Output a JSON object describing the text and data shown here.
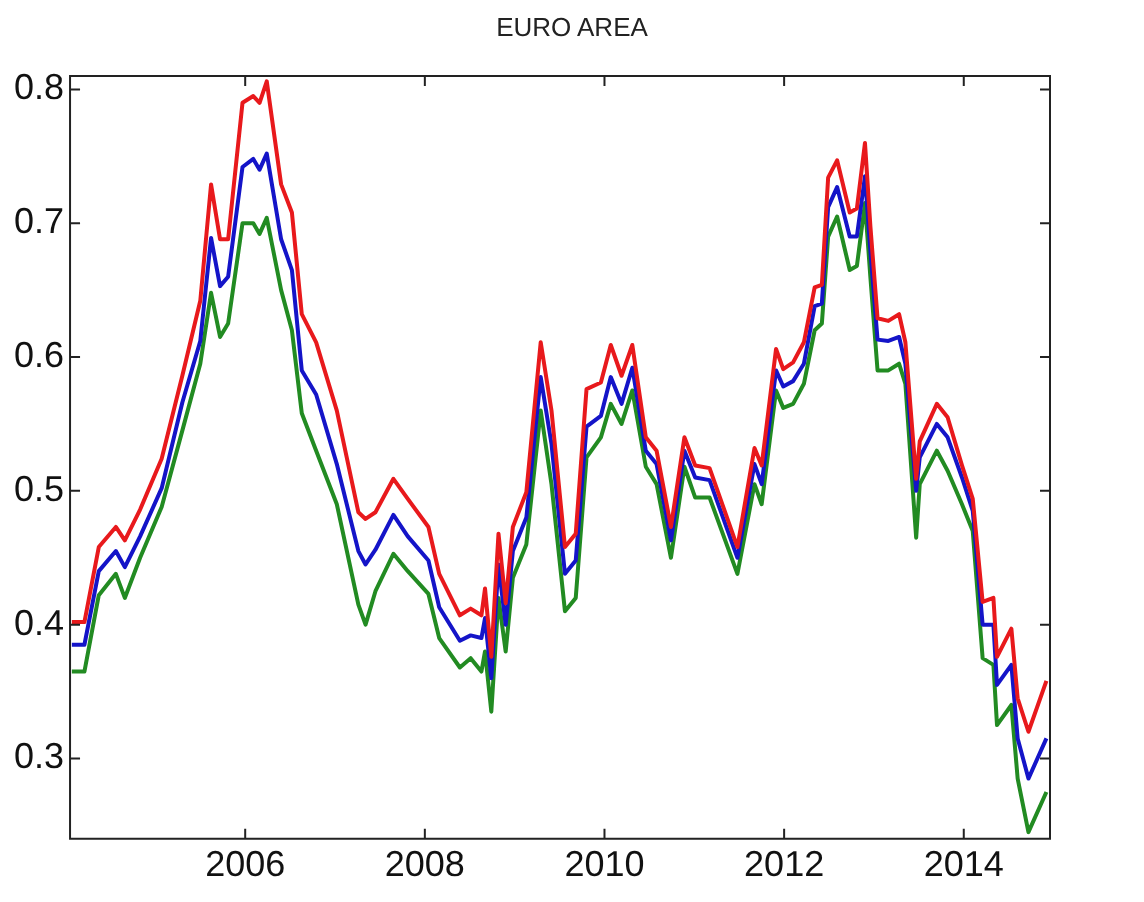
{
  "chart_data": {
    "type": "line",
    "title": "EURO AREA",
    "x": [
      2004.07,
      2004.21,
      2004.37,
      2004.56,
      2004.66,
      2004.83,
      2005.07,
      2005.3,
      2005.5,
      2005.62,
      2005.72,
      2005.81,
      2005.97,
      2006.09,
      2006.16,
      2006.24,
      2006.4,
      2006.52,
      2006.63,
      2006.79,
      2007.02,
      2007.26,
      2007.34,
      2007.45,
      2007.65,
      2007.81,
      2008.04,
      2008.16,
      2008.39,
      2008.51,
      2008.63,
      2008.67,
      2008.74,
      2008.82,
      2008.9,
      2008.98,
      2009.13,
      2009.29,
      2009.41,
      2009.56,
      2009.68,
      2009.8,
      2009.96,
      2010.07,
      2010.19,
      2010.31,
      2010.46,
      2010.58,
      2010.74,
      2010.89,
      2011.01,
      2011.17,
      2011.48,
      2011.67,
      2011.75,
      2011.91,
      2011.99,
      2012.1,
      2012.22,
      2012.34,
      2012.42,
      2012.49,
      2012.59,
      2012.73,
      2012.81,
      2012.9,
      2012.96,
      2013.04,
      2013.16,
      2013.28,
      2013.35,
      2013.47,
      2013.51,
      2013.7,
      2013.82,
      2013.98,
      2014.1,
      2014.21,
      2014.33,
      2014.37,
      2014.53,
      2014.6,
      2014.72,
      2014.92
    ],
    "series": [
      {
        "color": "#e8191c",
        "values": [
          0.402,
          0.402,
          0.458,
          0.473,
          0.463,
          0.486,
          0.524,
          0.586,
          0.642,
          0.729,
          0.688,
          0.688,
          0.79,
          0.795,
          0.79,
          0.806,
          0.729,
          0.708,
          0.632,
          0.611,
          0.56,
          0.484,
          0.479,
          0.484,
          0.509,
          0.494,
          0.473,
          0.438,
          0.407,
          0.412,
          0.407,
          0.427,
          0.376,
          0.468,
          0.416,
          0.473,
          0.499,
          0.611,
          0.56,
          0.458,
          0.468,
          0.576,
          0.581,
          0.609,
          0.586,
          0.609,
          0.54,
          0.53,
          0.473,
          0.54,
          0.519,
          0.517,
          0.458,
          0.532,
          0.519,
          0.606,
          0.591,
          0.596,
          0.611,
          0.652,
          0.654,
          0.734,
          0.747,
          0.708,
          0.711,
          0.76,
          0.698,
          0.629,
          0.627,
          0.632,
          0.611,
          0.509,
          0.537,
          0.565,
          0.555,
          0.519,
          0.494,
          0.417,
          0.42,
          0.376,
          0.397,
          0.345,
          0.32,
          0.358
        ]
      },
      {
        "color": "#1414c8",
        "values": [
          0.385,
          0.385,
          0.44,
          0.455,
          0.443,
          0.466,
          0.502,
          0.566,
          0.612,
          0.689,
          0.653,
          0.66,
          0.742,
          0.748,
          0.74,
          0.752,
          0.688,
          0.665,
          0.59,
          0.572,
          0.52,
          0.455,
          0.445,
          0.456,
          0.482,
          0.466,
          0.448,
          0.413,
          0.388,
          0.392,
          0.39,
          0.405,
          0.36,
          0.445,
          0.4,
          0.455,
          0.48,
          0.585,
          0.535,
          0.438,
          0.448,
          0.548,
          0.556,
          0.585,
          0.565,
          0.592,
          0.53,
          0.52,
          0.463,
          0.53,
          0.51,
          0.508,
          0.45,
          0.52,
          0.505,
          0.59,
          0.578,
          0.582,
          0.595,
          0.638,
          0.64,
          0.712,
          0.727,
          0.69,
          0.69,
          0.735,
          0.68,
          0.613,
          0.612,
          0.615,
          0.595,
          0.5,
          0.525,
          0.55,
          0.54,
          0.51,
          0.485,
          0.4,
          0.4,
          0.355,
          0.37,
          0.315,
          0.285,
          0.315
        ]
      },
      {
        "color": "#228b22",
        "values": [
          0.365,
          0.365,
          0.422,
          0.438,
          0.42,
          0.45,
          0.488,
          0.545,
          0.595,
          0.648,
          0.615,
          0.625,
          0.7,
          0.7,
          0.692,
          0.704,
          0.65,
          0.62,
          0.558,
          0.53,
          0.49,
          0.415,
          0.4,
          0.425,
          0.453,
          0.44,
          0.423,
          0.39,
          0.368,
          0.375,
          0.365,
          0.38,
          0.335,
          0.42,
          0.38,
          0.435,
          0.46,
          0.56,
          0.505,
          0.41,
          0.42,
          0.525,
          0.54,
          0.565,
          0.55,
          0.575,
          0.518,
          0.505,
          0.45,
          0.518,
          0.495,
          0.495,
          0.438,
          0.505,
          0.49,
          0.575,
          0.562,
          0.565,
          0.58,
          0.62,
          0.625,
          0.69,
          0.705,
          0.665,
          0.668,
          0.715,
          0.66,
          0.59,
          0.59,
          0.595,
          0.58,
          0.465,
          0.505,
          0.53,
          0.515,
          0.49,
          0.47,
          0.375,
          0.37,
          0.325,
          0.34,
          0.285,
          0.245,
          0.275
        ]
      }
    ],
    "xlim": [
      2004.05,
      2014.96
    ],
    "xticks": [
      2006,
      2008,
      2010,
      2012,
      2014
    ],
    "ylim": [
      0.24,
      0.81
    ],
    "yticks": [
      0.3,
      0.4,
      0.5,
      0.6,
      0.7,
      0.8
    ],
    "grid": false,
    "legend": false,
    "marker": "none",
    "line_style": "solid"
  }
}
